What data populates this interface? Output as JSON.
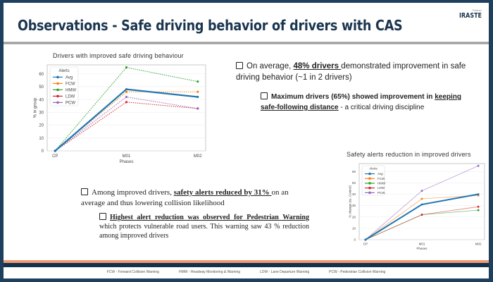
{
  "slide": {
    "title": "Observations  - Safe driving behavior of drivers with CAS",
    "logo_small": "Partner",
    "logo": "IRASTE"
  },
  "bullets": {
    "b1_pre": "On average, ",
    "b1_u": "48% drivers ",
    "b1_post": "demonstrated improvement in safe driving behavior (~1 in 2 drivers)",
    "b2_pre": "Maximum drivers (65%) showed improvement in ",
    "b2_u": "keeping safe-following distance",
    "b2_post": " - a critical driving discipline",
    "b3_pre": "Among improved drivers, ",
    "b3_u": "safety alerts reduced by 31% ",
    "b3_post": "on an average and thus lowering collision likelihood",
    "b4_u": "Highest alert reduction was observed for Pedestrian Warning",
    "b4_post": " which protects vulnerable road users. This warning saw 43 % reduction among improved drivers"
  },
  "footer": [
    "FCW - Forward Collision Warning",
    "HMW - Headway Monitoring & Warning",
    "LDW - Lane Departure Warning",
    "PCW - Pedestrian Collision Warning"
  ],
  "chart_data": [
    {
      "type": "line",
      "title": "Drivers with improved safe driving behaviour",
      "xlabel": "Phases",
      "ylabel": "% in group",
      "categories": [
        "CP",
        "M01",
        "M02"
      ],
      "ylim": [
        0,
        67
      ],
      "yticks": [
        0,
        10,
        20,
        30,
        40,
        50,
        60
      ],
      "legend_title": "Alerts",
      "legend_position": "top-left",
      "grid": true,
      "series": [
        {
          "name": "Avg",
          "values": [
            0,
            48,
            42
          ],
          "color": "#1f77b4",
          "style": "solid"
        },
        {
          "name": "FCW",
          "values": [
            0,
            46,
            46
          ],
          "color": "#ff7f0e",
          "style": "dotted"
        },
        {
          "name": "HMW",
          "values": [
            0,
            65,
            54
          ],
          "color": "#2ca02c",
          "style": "dotted"
        },
        {
          "name": "LDW",
          "values": [
            0,
            38,
            33
          ],
          "color": "#d62728",
          "style": "dotted"
        },
        {
          "name": "PCW",
          "values": [
            0,
            42,
            33
          ],
          "color": "#9467bd",
          "style": "dotted"
        }
      ]
    },
    {
      "type": "line",
      "title": "Safety alerts reduction in improved drivers",
      "xlabel": "Phases",
      "ylabel": "% change (vs. Control)",
      "categories": [
        "CP",
        "M01",
        "M02"
      ],
      "ylim": [
        0,
        67
      ],
      "yticks": [
        0,
        10,
        20,
        30,
        40,
        50,
        60
      ],
      "legend_title": "Alerts",
      "legend_position": "top-left",
      "grid": true,
      "series": [
        {
          "name": "Avg",
          "values": [
            0,
            31,
            40
          ],
          "color": "#1f77b4",
          "style": "solid"
        },
        {
          "name": "FCW",
          "values": [
            0,
            36,
            39
          ],
          "color": "#ff7f0e",
          "style": "light"
        },
        {
          "name": "HMW",
          "values": [
            0,
            22,
            26
          ],
          "color": "#2ca02c",
          "style": "light"
        },
        {
          "name": "LDW",
          "values": [
            0,
            22,
            29
          ],
          "color": "#d62728",
          "style": "light"
        },
        {
          "name": "PCW",
          "values": [
            0,
            43,
            65
          ],
          "color": "#9467bd",
          "style": "light"
        }
      ]
    }
  ]
}
